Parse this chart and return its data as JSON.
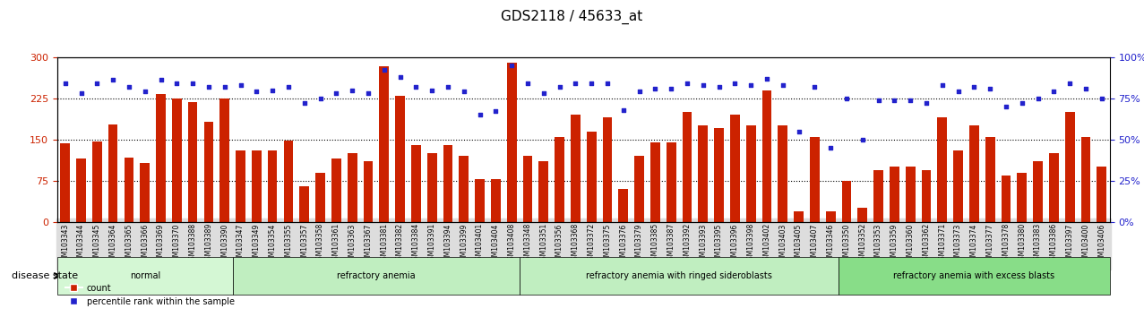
{
  "title": "GDS2118 / 45633_at",
  "categories": [
    "GSM103343",
    "GSM103344",
    "GSM103345",
    "GSM103364",
    "GSM103365",
    "GSM103366",
    "GSM103369",
    "GSM103370",
    "GSM103388",
    "GSM103389",
    "GSM103390",
    "GSM103347",
    "GSM103349",
    "GSM103354",
    "GSM103355",
    "GSM103357",
    "GSM103358",
    "GSM103361",
    "GSM103363",
    "GSM103367",
    "GSM103381",
    "GSM103382",
    "GSM103384",
    "GSM103391",
    "GSM103394",
    "GSM103399",
    "GSM103401",
    "GSM103404",
    "GSM103408",
    "GSM103348",
    "GSM103351",
    "GSM103356",
    "GSM103368",
    "GSM103372",
    "GSM103375",
    "GSM103376",
    "GSM103379",
    "GSM103385",
    "GSM103387",
    "GSM103392",
    "GSM103393",
    "GSM103395",
    "GSM103396",
    "GSM103398",
    "GSM103402",
    "GSM103403",
    "GSM103405",
    "GSM103407",
    "GSM103346",
    "GSM103350",
    "GSM103352",
    "GSM103353",
    "GSM103359",
    "GSM103360",
    "GSM103362",
    "GSM103371",
    "GSM103373",
    "GSM103374",
    "GSM103377",
    "GSM103378",
    "GSM103380",
    "GSM103383",
    "GSM103386",
    "GSM103397",
    "GSM103400",
    "GSM103406"
  ],
  "bar_values": [
    143,
    115,
    147,
    178,
    117,
    108,
    232,
    225,
    218,
    183,
    225,
    130,
    130,
    130,
    148,
    65,
    90,
    115,
    125,
    110,
    283,
    230,
    140,
    125,
    140,
    120,
    78,
    78,
    290,
    120,
    110,
    155,
    195,
    165,
    190,
    60,
    120,
    145,
    145,
    200,
    175,
    170,
    195,
    175,
    240,
    175,
    20,
    155,
    20,
    75,
    25,
    95,
    100,
    100,
    95,
    190,
    130,
    175,
    155,
    85,
    90,
    110,
    125,
    200,
    155,
    100
  ],
  "percentile_values": [
    84,
    78,
    84,
    86,
    82,
    79,
    86,
    84,
    84,
    82,
    82,
    83,
    79,
    80,
    82,
    72,
    75,
    78,
    80,
    78,
    92,
    88,
    82,
    80,
    82,
    79,
    65,
    67,
    95,
    84,
    78,
    82,
    84,
    84,
    84,
    68,
    79,
    81,
    81,
    84,
    83,
    82,
    84,
    83,
    87,
    83,
    55,
    82,
    45,
    75,
    50,
    74,
    74,
    74,
    72,
    83,
    79,
    82,
    81,
    70,
    72,
    75,
    79,
    84,
    81,
    75
  ],
  "group_labels": [
    "normal",
    "refractory anemia",
    "refractory anemia with ringed sideroblasts",
    "refractory anemia with excess blasts"
  ],
  "group_counts": [
    11,
    18,
    20,
    17
  ],
  "group_colors": [
    "#ccffcc",
    "#aaffaa",
    "#88ee88",
    "#66dd66"
  ],
  "bar_color": "#cc2200",
  "dot_color": "#2222cc",
  "left_yticks": [
    0,
    75,
    150,
    225,
    300
  ],
  "right_yticks": [
    0,
    25,
    50,
    75,
    100
  ],
  "ylim_left": [
    0,
    300
  ],
  "ylim_right": [
    0,
    100
  ],
  "hline_values": [
    75,
    150,
    225
  ],
  "legend_label_bar": "count",
  "legend_label_dot": "percentile rank within the sample",
  "disease_state_label": "disease state"
}
